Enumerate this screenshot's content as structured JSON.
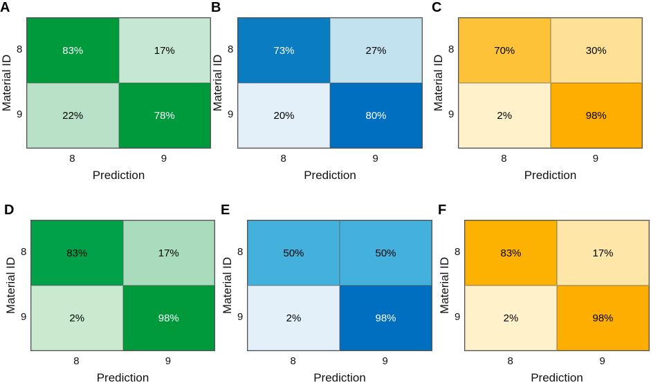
{
  "chart_data": [
    {
      "panel": "A",
      "type": "heatmap",
      "xlabel": "Prediction",
      "ylabel": "Material ID",
      "x_ticks": [
        "8",
        "9"
      ],
      "y_ticks": [
        "8",
        "9"
      ],
      "cells": [
        [
          "83%",
          "17%"
        ],
        [
          "22%",
          "78%"
        ]
      ],
      "values": [
        [
          83,
          17
        ],
        [
          22,
          78
        ]
      ],
      "colors": [
        [
          "#009a3c",
          "#c6e8d2"
        ],
        [
          "#b8e1c8",
          "#009a3c"
        ]
      ],
      "text_colors": [
        [
          "#ffffff",
          "#000000"
        ],
        [
          "#000000",
          "#ffffff"
        ]
      ]
    },
    {
      "panel": "B",
      "type": "heatmap",
      "xlabel": "Prediction",
      "ylabel": "Material ID",
      "x_ticks": [
        "8",
        "9"
      ],
      "y_ticks": [
        "8",
        "9"
      ],
      "cells": [
        [
          "73%",
          "27%"
        ],
        [
          "20%",
          "80%"
        ]
      ],
      "values": [
        [
          73,
          27
        ],
        [
          20,
          80
        ]
      ],
      "colors": [
        [
          "#0a7cc2",
          "#c3e2f0"
        ],
        [
          "#e3f0f9",
          "#006fbf"
        ]
      ],
      "text_colors": [
        [
          "#ffffff",
          "#000000"
        ],
        [
          "#000000",
          "#ffffff"
        ]
      ]
    },
    {
      "panel": "C",
      "type": "heatmap",
      "xlabel": "Prediction",
      "ylabel": "Material ID",
      "x_ticks": [
        "8",
        "9"
      ],
      "y_ticks": [
        "8",
        "9"
      ],
      "cells": [
        [
          "70%",
          "30%"
        ],
        [
          "2%",
          "98%"
        ]
      ],
      "values": [
        [
          70,
          30
        ],
        [
          2,
          98
        ]
      ],
      "colors": [
        [
          "#fdc338",
          "#fee196"
        ],
        [
          "#fff1c9",
          "#fdae00"
        ]
      ],
      "text_colors": [
        [
          "#000000",
          "#000000"
        ],
        [
          "#000000",
          "#000000"
        ]
      ]
    },
    {
      "panel": "D",
      "type": "heatmap",
      "xlabel": "Prediction",
      "ylabel": "Material ID",
      "x_ticks": [
        "8",
        "9"
      ],
      "y_ticks": [
        "8",
        "9"
      ],
      "cells": [
        [
          "83%",
          "17%"
        ],
        [
          "2%",
          "98%"
        ]
      ],
      "values": [
        [
          83,
          17
        ],
        [
          2,
          98
        ]
      ],
      "colors": [
        [
          "#00a148",
          "#a8dcbc"
        ],
        [
          "#c9eacf",
          "#009a3c"
        ]
      ],
      "text_colors": [
        [
          "#000000",
          "#000000"
        ],
        [
          "#000000",
          "#ffffff"
        ]
      ]
    },
    {
      "panel": "E",
      "type": "heatmap",
      "xlabel": "Prediction",
      "ylabel": "Material ID",
      "x_ticks": [
        "8",
        "9"
      ],
      "y_ticks": [
        "8",
        "9"
      ],
      "cells": [
        [
          "50%",
          "50%"
        ],
        [
          "2%",
          "98%"
        ]
      ],
      "values": [
        [
          50,
          50
        ],
        [
          2,
          98
        ]
      ],
      "colors": [
        [
          "#44b0dc",
          "#44b0dc"
        ],
        [
          "#e3f0f9",
          "#006fbf"
        ]
      ],
      "text_colors": [
        [
          "#000000",
          "#000000"
        ],
        [
          "#000000",
          "#ffffff"
        ]
      ]
    },
    {
      "panel": "F",
      "type": "heatmap",
      "xlabel": "Prediction",
      "ylabel": "Material ID",
      "x_ticks": [
        "8",
        "9"
      ],
      "y_ticks": [
        "8",
        "9"
      ],
      "cells": [
        [
          "83%",
          "17%"
        ],
        [
          "2%",
          "98%"
        ]
      ],
      "values": [
        [
          83,
          17
        ],
        [
          2,
          98
        ]
      ],
      "colors": [
        [
          "#fdb100",
          "#fee6a8"
        ],
        [
          "#fff1c9",
          "#fdae00"
        ]
      ],
      "text_colors": [
        [
          "#000000",
          "#000000"
        ],
        [
          "#000000",
          "#000000"
        ]
      ]
    }
  ]
}
